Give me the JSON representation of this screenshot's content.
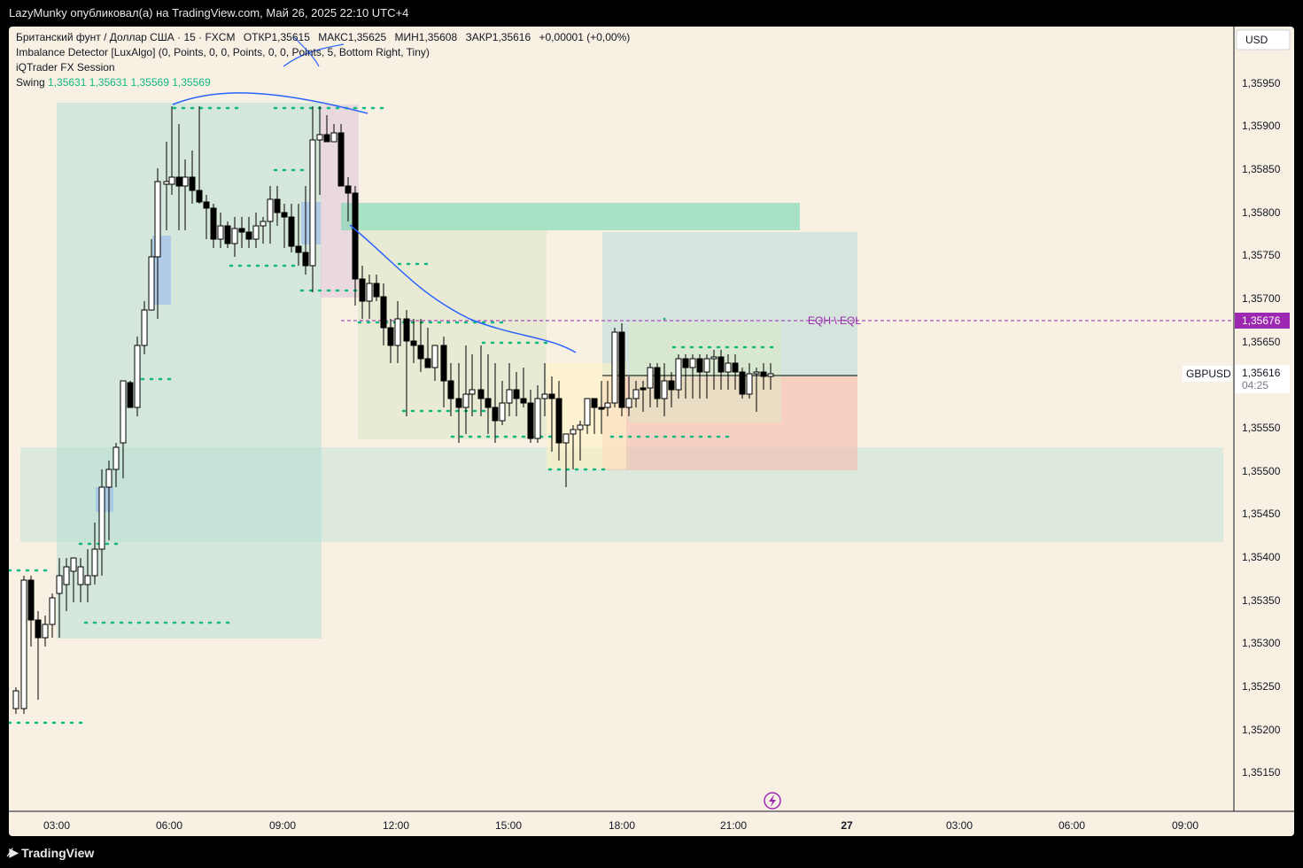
{
  "header": {
    "publisher_line": "LazyMunky опубликовал(а) на TradingView.com, Май 26, 2025 22:10 UTC+4"
  },
  "legend": {
    "symbol_line": "Британский фунт / Доллар США · 15 · FXCM",
    "open_label": "ОТКР",
    "open_value": "1,35615",
    "high_label": "МАКС",
    "high_value": "1,35625",
    "low_label": "МИН",
    "low_value": "1,35608",
    "close_label": "ЗАКР",
    "close_value": "1,35616",
    "change": "+0,00001 (+0,00%)",
    "indicator1": "Imbalance Detector [LuxAlgo] (0, Points, 0, 0, Points, 0, 0, Points, 5, Bottom Right, Tiny)",
    "indicator2": "iQTrader FX Session",
    "swing_label": "Swing",
    "swing_values": [
      "1,35631",
      "1,35631",
      "1,35569",
      "1,35569"
    ]
  },
  "price_axis": {
    "currency": "USD",
    "ticks": [
      "1,35950",
      "1,35900",
      "1,35850",
      "1,35800",
      "1,35750",
      "1,35700",
      "1,35650",
      "1,35550",
      "1,35500",
      "1,35450",
      "1,35400",
      "1,35350",
      "1,35300",
      "1,35250",
      "1,35200",
      "1,35150"
    ],
    "eq_price": "1,35676",
    "current_price": "1,35616",
    "countdown": "04:25",
    "symbol_tag": "GBPUSD"
  },
  "time_axis": {
    "ticks": [
      "03:00",
      "06:00",
      "09:00",
      "12:00",
      "15:00",
      "18:00",
      "21:00",
      "27",
      "03:00",
      "06:00",
      "09:00"
    ]
  },
  "annotations": {
    "eq_label": "EQH \\ EQL"
  },
  "colors": {
    "background": "#f7f0e3",
    "bull": "#ffffff",
    "bear": "#000000",
    "swing": "#10b981",
    "eq_line": "#9c27b0",
    "drawing": "#2962ff"
  },
  "footer": {
    "brand": "TradingView"
  }
}
